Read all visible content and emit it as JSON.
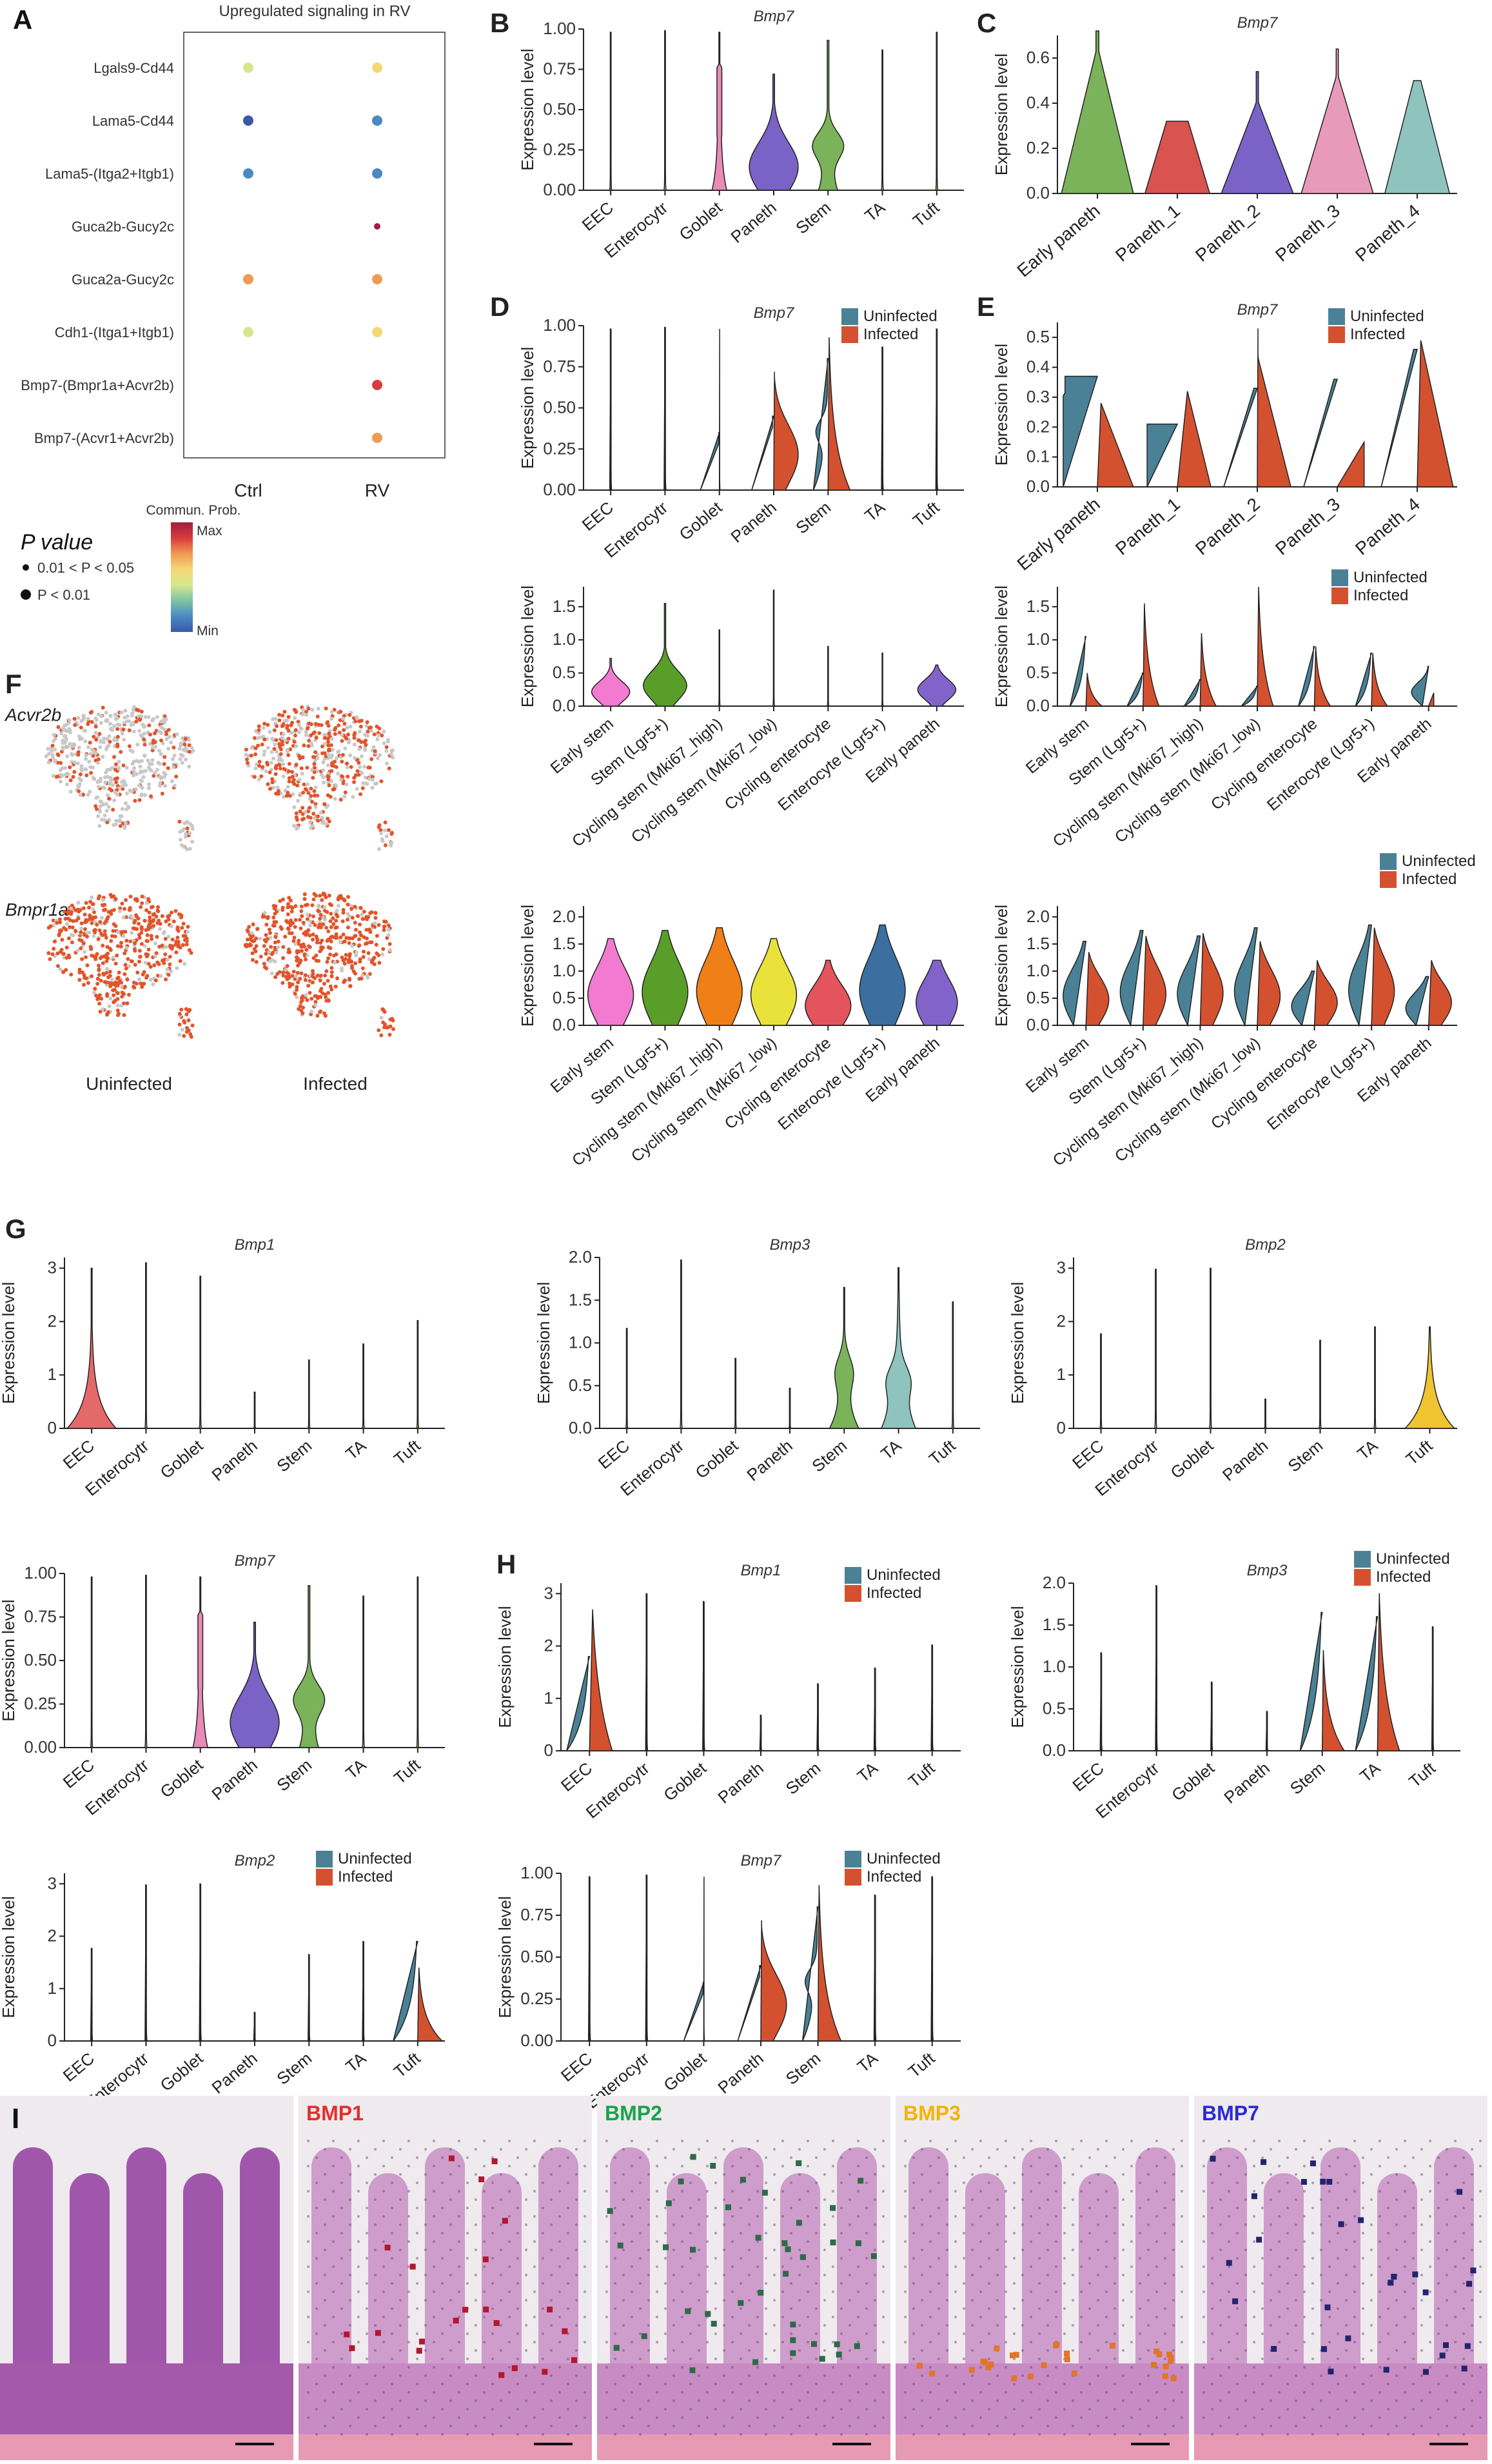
{
  "panel_letters": {
    "A": "A",
    "B": "B",
    "C": "C",
    "D": "D",
    "E": "E",
    "F": "F",
    "G": "G",
    "H": "H",
    "I": "I"
  },
  "colors": {
    "uninfected": "#4a8197",
    "infected": "#d4512f",
    "EEC": "#e46a6a",
    "Goblet": "#e88bb6",
    "Paneth": "#7b62c7",
    "Stem": "#7ab35a",
    "TA": "#8fc3bd",
    "Tuft": "#f0c330",
    "early_paneth": "#7ab35a",
    "paneth_1": "#d9534f",
    "paneth_2": "#7b62c7",
    "paneth_3": "#e89aba",
    "paneth_4": "#8fc3bd",
    "early_stem": "#f27ad0",
    "stem_lgr5": "#5a9e2a",
    "cycling_high": "#f07f17",
    "cycling_low": "#e8e23a",
    "cycling_enterocyte": "#e3545c",
    "enterocyte_lgr5": "#3c6ea0",
    "early_paneth_d": "#8263c9"
  },
  "common": {
    "ylabel": "Expression level",
    "legend_uninfected": "Uninfected",
    "legend_infected": "Infected"
  },
  "panelA": {
    "title": "Upregulated signaling in RV",
    "pairs": [
      "Lgals9-Cd44",
      "Lama5-Cd44",
      "Lama5-(Itga2+Itgb1)",
      "Guca2b-Gucy2c",
      "Guca2a-Gucy2c",
      "Cdh1-(Itga1+Itgb1)",
      "Bmp7-(Bmpr1a+Acvr2b)",
      "Bmp7-(Acvr1+Acvr2b)"
    ],
    "x_labels": [
      "Ctrl",
      "RV"
    ],
    "legend_comm": "Commun. Prob.",
    "legend_max": "Max",
    "legend_min": "Min",
    "legend_p": "P value",
    "legend_p1": "0.01 < P < 0.05",
    "legend_p2": "P < 0.01"
  },
  "panelF": {
    "gene1": "Acvr2b",
    "gene2": "Bmpr1a",
    "col1": "Uninfected",
    "col2": "Infected"
  },
  "panelI": {
    "labels": [
      "BMP1",
      "BMP2",
      "BMP3",
      "BMP7"
    ],
    "label_colors": [
      "#e0302b",
      "#18a44a",
      "#f4b400",
      "#2a2ad6"
    ]
  },
  "chart_data": [
    {
      "id": "A",
      "type": "scatter",
      "title": "Upregulated signaling in RV",
      "categories": [
        "Ctrl",
        "RV"
      ],
      "rows": [
        "Lgals9-Cd44",
        "Lama5-Cd44",
        "Lama5-(Itga2+Itgb1)",
        "Guca2b-Gucy2c",
        "Guca2a-Gucy2c",
        "Cdh1-(Itga1+Itgb1)",
        "Bmp7-(Bmpr1a+Acvr2b)",
        "Bmp7-(Acvr1+Acvr2b)"
      ],
      "ctrl": [
        0.45,
        0.05,
        0.1,
        null,
        0.7,
        0.45,
        null,
        null
      ],
      "rv": [
        0.55,
        0.08,
        0.1,
        1.0,
        0.78,
        0.55,
        0.85,
        0.7
      ]
    },
    {
      "id": "B",
      "type": "violin",
      "title": "Bmp7",
      "ylabel": "Expression level",
      "ylim": [
        0,
        1
      ],
      "yticks": [
        "0.00",
        "0.25",
        "0.50",
        "0.75",
        "1.00"
      ],
      "categories": [
        "EEC",
        "Enterocytr",
        "Goblet",
        "Paneth",
        "Stem",
        "TA",
        "Tuft"
      ],
      "max": [
        0.98,
        0.99,
        0.98,
        0.72,
        0.93,
        0.87,
        0.98
      ]
    },
    {
      "id": "C",
      "type": "violin",
      "title": "Bmp7",
      "ylabel": "Expression level",
      "ylim": [
        0,
        0.7
      ],
      "yticks": [
        "0.0",
        "0.2",
        "0.4",
        "0.6"
      ],
      "categories": [
        "Early paneth",
        "Paneth_1",
        "Paneth_2",
        "Paneth_3",
        "Paneth_4"
      ],
      "max": [
        0.72,
        0.32,
        0.54,
        0.64,
        0.5
      ]
    },
    {
      "id": "D1",
      "type": "violin",
      "title": "Bmp7",
      "ylabel": "Expression level",
      "ylim": [
        0,
        1
      ],
      "yticks": [
        "0.00",
        "0.25",
        "0.50",
        "0.75",
        "1.00"
      ],
      "categories": [
        "EEC",
        "Enterocytr",
        "Goblet",
        "Paneth",
        "Stem",
        "TA",
        "Tuft"
      ],
      "series": [
        "Uninfected",
        "Infected"
      ]
    },
    {
      "id": "D2",
      "type": "violin",
      "ylabel": "Expression level",
      "ylim": [
        0,
        1.8
      ],
      "yticks": [
        "0.0",
        "0.5",
        "1.0",
        "1.5"
      ],
      "categories": [
        "Early stem",
        "Stem (Lgr5+)",
        "Cycling stem (Mki67_high)",
        "Cycling stem (Mki67_low)",
        "Cycling enterocyte",
        "Enterocyte (Lgr5+)",
        "Early paneth"
      ]
    },
    {
      "id": "D3",
      "type": "violin",
      "ylabel": "Expression level",
      "ylim": [
        0,
        2.2
      ],
      "yticks": [
        "0.0",
        "0.5",
        "1.0",
        "1.5",
        "2.0"
      ],
      "categories": [
        "Early stem",
        "Stem (Lgr5+)",
        "Cycling stem (Mki67_high)",
        "Cycling stem (Mki67_low)",
        "Cycling enterocyte",
        "Enterocyte (Lgr5+)",
        "Early paneth"
      ]
    },
    {
      "id": "E1",
      "type": "violin",
      "title": "Bmp7",
      "ylabel": "Expression level",
      "ylim": [
        0,
        0.55
      ],
      "yticks": [
        "0.0",
        "0.1",
        "0.2",
        "0.3",
        "0.4",
        "0.5"
      ],
      "categories": [
        "Early paneth",
        "Paneth_1",
        "Paneth_2",
        "Paneth_3",
        "Paneth_4"
      ],
      "series": [
        "Uninfected",
        "Infected"
      ]
    },
    {
      "id": "E2",
      "type": "violin",
      "ylabel": "Expression level",
      "ylim": [
        0,
        1.8
      ],
      "yticks": [
        "0.0",
        "0.5",
        "1.0",
        "1.5"
      ],
      "categories": [
        "Early stem",
        "Stem (Lgr5+)",
        "Cycling stem (Mki67_high)",
        "Cycling stem (Mki67_low)",
        "Cycling enterocyte",
        "Enterocyte (Lgr5+)",
        "Early paneth"
      ],
      "series": [
        "Uninfected",
        "Infected"
      ]
    },
    {
      "id": "E3",
      "type": "violin",
      "ylabel": "Expression level",
      "ylim": [
        0,
        2.2
      ],
      "yticks": [
        "0.0",
        "0.5",
        "1.0",
        "1.5",
        "2.0"
      ],
      "categories": [
        "Early stem",
        "Stem (Lgr5+)",
        "Cycling stem (Mki67_high)",
        "Cycling stem (Mki67_low)",
        "Cycling enterocyte",
        "Enterocyte (Lgr5+)",
        "Early paneth"
      ],
      "series": [
        "Uninfected",
        "Infected"
      ]
    },
    {
      "id": "G1",
      "type": "violin",
      "title": "Bmp1",
      "ylabel": "Expression level",
      "ylim": [
        0,
        3.2
      ],
      "yticks": [
        "0",
        "1",
        "2",
        "3"
      ],
      "categories": [
        "EEC",
        "Enterocytr",
        "Goblet",
        "Paneth",
        "Stem",
        "TA",
        "Tuft"
      ]
    },
    {
      "id": "G2",
      "type": "violin",
      "title": "Bmp3",
      "ylabel": "Expression level",
      "ylim": [
        0,
        2
      ],
      "yticks": [
        "0.0",
        "0.5",
        "1.0",
        "1.5",
        "2.0"
      ],
      "categories": [
        "EEC",
        "Enterocytr",
        "Goblet",
        "Paneth",
        "Stem",
        "TA",
        "Tuft"
      ]
    },
    {
      "id": "G3",
      "type": "violin",
      "title": "Bmp2",
      "ylabel": "Expression level",
      "ylim": [
        0,
        3.2
      ],
      "yticks": [
        "0",
        "1",
        "2",
        "3"
      ],
      "categories": [
        "EEC",
        "Enterocytr",
        "Goblet",
        "Paneth",
        "Stem",
        "TA",
        "Tuft"
      ]
    },
    {
      "id": "G4",
      "type": "violin",
      "title": "Bmp7",
      "ylabel": "Expression level",
      "ylim": [
        0,
        1
      ],
      "yticks": [
        "0.00",
        "0.25",
        "0.50",
        "0.75",
        "1.00"
      ],
      "categories": [
        "EEC",
        "Enterocytr",
        "Goblet",
        "Paneth",
        "Stem",
        "TA",
        "Tuft"
      ]
    },
    {
      "id": "H1",
      "type": "violin",
      "title": "Bmp1",
      "ylabel": "Expression level",
      "ylim": [
        0,
        3.2
      ],
      "yticks": [
        "0",
        "1",
        "2",
        "3"
      ],
      "categories": [
        "EEC",
        "Enterocytr",
        "Goblet",
        "Paneth",
        "Stem",
        "TA",
        "Tuft"
      ],
      "series": [
        "Uninfected",
        "Infected"
      ]
    },
    {
      "id": "H2",
      "type": "violin",
      "title": "Bmp3",
      "ylabel": "Expression level",
      "ylim": [
        0,
        2
      ],
      "yticks": [
        "0.0",
        "0.5",
        "1.0",
        "1.5",
        "2.0"
      ],
      "categories": [
        "EEC",
        "Enterocytr",
        "Goblet",
        "Paneth",
        "Stem",
        "TA",
        "Tuft"
      ],
      "series": [
        "Uninfected",
        "Infected"
      ]
    },
    {
      "id": "H3",
      "type": "violin",
      "title": "Bmp2",
      "ylabel": "Expression level",
      "ylim": [
        0,
        3.2
      ],
      "yticks": [
        "0",
        "1",
        "2",
        "3"
      ],
      "categories": [
        "EEC",
        "Enterocytr",
        "Goblet",
        "Paneth",
        "Stem",
        "TA",
        "Tuft"
      ],
      "series": [
        "Uninfected",
        "Infected"
      ]
    },
    {
      "id": "H4",
      "type": "violin",
      "title": "Bmp7",
      "ylabel": "Expression level",
      "ylim": [
        0,
        1
      ],
      "yticks": [
        "0.00",
        "0.25",
        "0.50",
        "0.75",
        "1.00"
      ],
      "categories": [
        "EEC",
        "Enterocytr",
        "Goblet",
        "Paneth",
        "Stem",
        "TA",
        "Tuft"
      ],
      "series": [
        "Uninfected",
        "Infected"
      ]
    }
  ]
}
